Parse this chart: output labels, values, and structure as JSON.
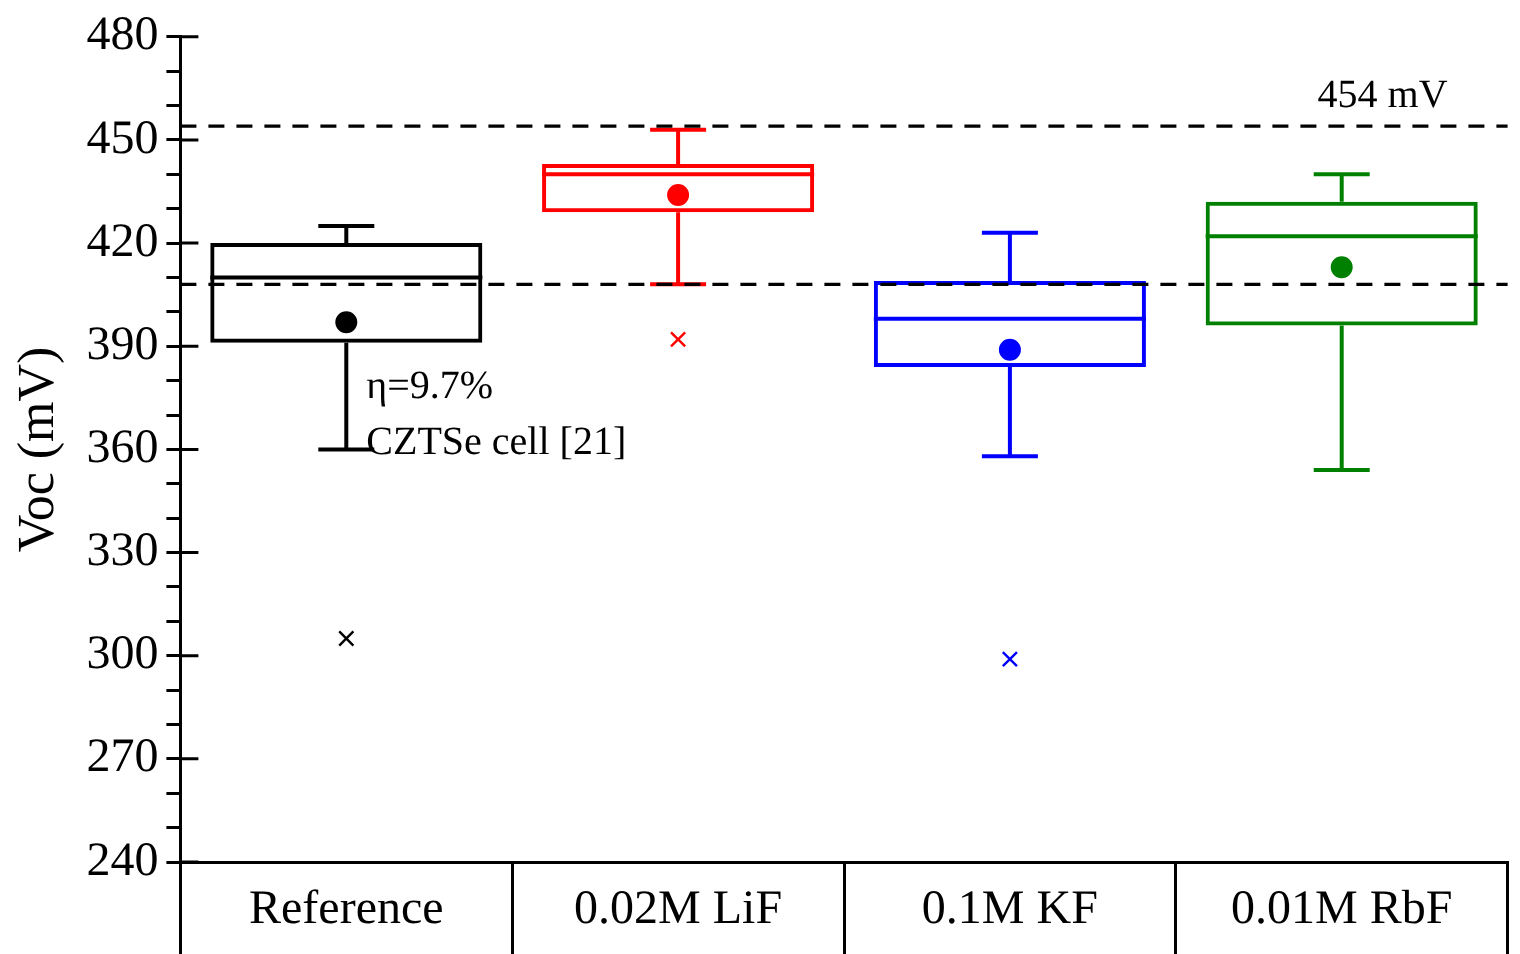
{
  "chart_data": {
    "type": "box",
    "ylabel": "Voc (mV)",
    "categories": [
      "Reference",
      "0.02M LiF",
      "0.1M KF",
      "0.01M RbF"
    ],
    "colors": [
      "#000000",
      "#ff0000",
      "#0000ff",
      "#008000"
    ],
    "boxes": [
      {
        "low": 360,
        "q1": 391,
        "median": 410,
        "q3": 420,
        "high": 425,
        "mean": 397,
        "outliers": [
          305
        ]
      },
      {
        "low": 408,
        "q1": 429,
        "median": 440,
        "q3": 443,
        "high": 453,
        "mean": 434,
        "outliers": [
          392
        ]
      },
      {
        "low": 358,
        "q1": 384,
        "median": 398,
        "q3": 409,
        "high": 423,
        "mean": 389,
        "outliers": [
          299
        ]
      },
      {
        "low": 354,
        "q1": 396,
        "median": 422,
        "q3": 432,
        "high": 440,
        "mean": 413
      }
    ],
    "ylim": [
      240,
      480
    ],
    "yticks": [
      240,
      {
        "value": 250,
        "label": null
      },
      {
        "value": 260,
        "label": null
      },
      270,
      {
        "value": 280,
        "label": null
      },
      {
        "value": 290,
        "label": null
      },
      300,
      {
        "value": 310,
        "label": null
      },
      {
        "value": 320,
        "label": null
      },
      330,
      {
        "value": 340,
        "label": null
      },
      {
        "value": 350,
        "label": null
      },
      360,
      {
        "value": 370,
        "label": null
      },
      {
        "value": 380,
        "label": null
      },
      390,
      {
        "value": 400,
        "label": null
      },
      {
        "value": 410,
        "label": null
      },
      420,
      {
        "value": 430,
        "label": null
      },
      {
        "value": 440,
        "label": null
      },
      450,
      {
        "value": 460,
        "label": null
      },
      {
        "value": 470,
        "label": null
      },
      480
    ],
    "ref_lines": [
      {
        "axis": "y",
        "value": 454,
        "label": "454 mV",
        "color": "#000000",
        "line_style": "dashed"
      },
      {
        "axis": "y",
        "value": 408,
        "color": "#000000",
        "line_style": "dashed"
      }
    ],
    "annotations": [
      "η=9.7%\nCZTSe cell [21]"
    ],
    "grid": false,
    "legend": false,
    "marker": "cross"
  }
}
